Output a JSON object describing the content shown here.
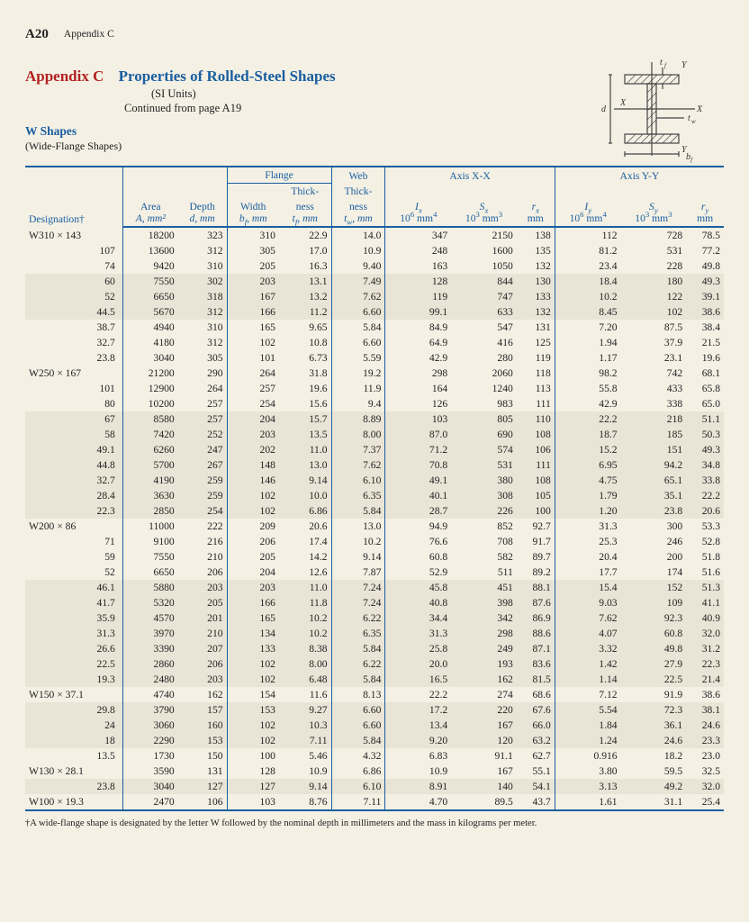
{
  "page": {
    "num": "A20",
    "section": "Appendix C"
  },
  "header": {
    "appendix": "Appendix C",
    "title": "Properties of Rolled-Steel Shapes",
    "units": "(SI Units)",
    "continued": "Continued from page A19",
    "shape": "W Shapes",
    "shape_sub": "(Wide-Flange Shapes)"
  },
  "diagram": {
    "labels": {
      "tf": "t",
      "tf_sub": "f",
      "Y": "Y",
      "d": "d",
      "X": "X",
      "tw": "t",
      "tw_sub": "w",
      "bf": "b",
      "bf_sub": "f"
    },
    "stroke": "#444444"
  },
  "table": {
    "colgroups": {
      "flange": "Flange",
      "web": "Web",
      "axis_xx": "Axis X-X",
      "axis_yy": "Axis Y-Y"
    },
    "columns": [
      {
        "h1": "",
        "h2": "Designation†",
        "u": ""
      },
      {
        "h1": "Area",
        "h2": "A, mm²",
        "u": ""
      },
      {
        "h1": "Depth",
        "h2": "d, mm",
        "u": ""
      },
      {
        "h1": "Width",
        "h2": "bƒ, mm",
        "u": ""
      },
      {
        "h1": "Thick-\nness",
        "h2": "tƒ, mm",
        "u": ""
      },
      {
        "h1": "Thick-\nness",
        "h2": "t_w, mm",
        "u": ""
      },
      {
        "h1": "Iₓ",
        "h2": "10⁶ mm⁴",
        "u": ""
      },
      {
        "h1": "Sₓ",
        "h2": "10³ mm³",
        "u": ""
      },
      {
        "h1": "rₓ",
        "h2": "mm",
        "u": ""
      },
      {
        "h1": "I_y",
        "h2": "10⁶ mm⁴",
        "u": ""
      },
      {
        "h1": "S_y",
        "h2": "10³ mm³",
        "u": ""
      },
      {
        "h1": "r_y",
        "h2": "mm",
        "u": ""
      }
    ],
    "groups": [
      {
        "label": "W310 × 143",
        "rows": [
          [
            "143",
            "18200",
            "323",
            "310",
            "22.9",
            "14.0",
            "347",
            "2150",
            "138",
            "112",
            "728",
            "78.5"
          ],
          [
            "107",
            "13600",
            "312",
            "305",
            "17.0",
            "10.9",
            "248",
            "1600",
            "135",
            "81.2",
            "531",
            "77.2"
          ],
          [
            "74",
            "9420",
            "310",
            "205",
            "16.3",
            "9.40",
            "163",
            "1050",
            "132",
            "23.4",
            "228",
            "49.8"
          ],
          [
            "60",
            "7550",
            "302",
            "203",
            "13.1",
            "7.49",
            "128",
            "844",
            "130",
            "18.4",
            "180",
            "49.3"
          ],
          [
            "52",
            "6650",
            "318",
            "167",
            "13.2",
            "7.62",
            "119",
            "747",
            "133",
            "10.2",
            "122",
            "39.1"
          ],
          [
            "44.5",
            "5670",
            "312",
            "166",
            "11.2",
            "6.60",
            "99.1",
            "633",
            "132",
            "8.45",
            "102",
            "38.6"
          ],
          [
            "38.7",
            "4940",
            "310",
            "165",
            "9.65",
            "5.84",
            "84.9",
            "547",
            "131",
            "7.20",
            "87.5",
            "38.4"
          ],
          [
            "32.7",
            "4180",
            "312",
            "102",
            "10.8",
            "6.60",
            "64.9",
            "416",
            "125",
            "1.94",
            "37.9",
            "21.5"
          ],
          [
            "23.8",
            "3040",
            "305",
            "101",
            "6.73",
            "5.59",
            "42.9",
            "280",
            "119",
            "1.17",
            "23.1",
            "19.6"
          ]
        ]
      },
      {
        "label": "W250 × 167",
        "rows": [
          [
            "167",
            "21200",
            "290",
            "264",
            "31.8",
            "19.2",
            "298",
            "2060",
            "118",
            "98.2",
            "742",
            "68.1"
          ],
          [
            "101",
            "12900",
            "264",
            "257",
            "19.6",
            "11.9",
            "164",
            "1240",
            "113",
            "55.8",
            "433",
            "65.8"
          ],
          [
            "80",
            "10200",
            "257",
            "254",
            "15.6",
            "9.4",
            "126",
            "983",
            "111",
            "42.9",
            "338",
            "65.0"
          ],
          [
            "67",
            "8580",
            "257",
            "204",
            "15.7",
            "8.89",
            "103",
            "805",
            "110",
            "22.2",
            "218",
            "51.1"
          ],
          [
            "58",
            "7420",
            "252",
            "203",
            "13.5",
            "8.00",
            "87.0",
            "690",
            "108",
            "18.7",
            "185",
            "50.3"
          ],
          [
            "49.1",
            "6260",
            "247",
            "202",
            "11.0",
            "7.37",
            "71.2",
            "574",
            "106",
            "15.2",
            "151",
            "49.3"
          ],
          [
            "44.8",
            "5700",
            "267",
            "148",
            "13.0",
            "7.62",
            "70.8",
            "531",
            "111",
            "6.95",
            "94.2",
            "34.8"
          ],
          [
            "32.7",
            "4190",
            "259",
            "146",
            "9.14",
            "6.10",
            "49.1",
            "380",
            "108",
            "4.75",
            "65.1",
            "33.8"
          ],
          [
            "28.4",
            "3630",
            "259",
            "102",
            "10.0",
            "6.35",
            "40.1",
            "308",
            "105",
            "1.79",
            "35.1",
            "22.2"
          ],
          [
            "22.3",
            "2850",
            "254",
            "102",
            "6.86",
            "5.84",
            "28.7",
            "226",
            "100",
            "1.20",
            "23.8",
            "20.6"
          ]
        ]
      },
      {
        "label": "W200 × 86",
        "rows": [
          [
            "86",
            "11000",
            "222",
            "209",
            "20.6",
            "13.0",
            "94.9",
            "852",
            "92.7",
            "31.3",
            "300",
            "53.3"
          ],
          [
            "71",
            "9100",
            "216",
            "206",
            "17.4",
            "10.2",
            "76.6",
            "708",
            "91.7",
            "25.3",
            "246",
            "52.8"
          ],
          [
            "59",
            "7550",
            "210",
            "205",
            "14.2",
            "9.14",
            "60.8",
            "582",
            "89.7",
            "20.4",
            "200",
            "51.8"
          ],
          [
            "52",
            "6650",
            "206",
            "204",
            "12.6",
            "7.87",
            "52.9",
            "511",
            "89.2",
            "17.7",
            "174",
            "51.6"
          ],
          [
            "46.1",
            "5880",
            "203",
            "203",
            "11.0",
            "7.24",
            "45.8",
            "451",
            "88.1",
            "15.4",
            "152",
            "51.3"
          ],
          [
            "41.7",
            "5320",
            "205",
            "166",
            "11.8",
            "7.24",
            "40.8",
            "398",
            "87.6",
            "9.03",
            "109",
            "41.1"
          ],
          [
            "35.9",
            "4570",
            "201",
            "165",
            "10.2",
            "6.22",
            "34.4",
            "342",
            "86.9",
            "7.62",
            "92.3",
            "40.9"
          ],
          [
            "31.3",
            "3970",
            "210",
            "134",
            "10.2",
            "6.35",
            "31.3",
            "298",
            "88.6",
            "4.07",
            "60.8",
            "32.0"
          ],
          [
            "26.6",
            "3390",
            "207",
            "133",
            "8.38",
            "5.84",
            "25.8",
            "249",
            "87.1",
            "3.32",
            "49.8",
            "31.2"
          ],
          [
            "22.5",
            "2860",
            "206",
            "102",
            "8.00",
            "6.22",
            "20.0",
            "193",
            "83.6",
            "1.42",
            "27.9",
            "22.3"
          ],
          [
            "19.3",
            "2480",
            "203",
            "102",
            "6.48",
            "5.84",
            "16.5",
            "162",
            "81.5",
            "1.14",
            "22.5",
            "21.4"
          ]
        ]
      },
      {
        "label": "W150 × 37.1",
        "rows": [
          [
            "37.1",
            "4740",
            "162",
            "154",
            "11.6",
            "8.13",
            "22.2",
            "274",
            "68.6",
            "7.12",
            "91.9",
            "38.6"
          ],
          [
            "29.8",
            "3790",
            "157",
            "153",
            "9.27",
            "6.60",
            "17.2",
            "220",
            "67.6",
            "5.54",
            "72.3",
            "38.1"
          ],
          [
            "24",
            "3060",
            "160",
            "102",
            "10.3",
            "6.60",
            "13.4",
            "167",
            "66.0",
            "1.84",
            "36.1",
            "24.6"
          ],
          [
            "18",
            "2290",
            "153",
            "102",
            "7.11",
            "5.84",
            "9.20",
            "120",
            "63.2",
            "1.24",
            "24.6",
            "23.3"
          ],
          [
            "13.5",
            "1730",
            "150",
            "100",
            "5.46",
            "4.32",
            "6.83",
            "91.1",
            "62.7",
            "0.916",
            "18.2",
            "23.0"
          ]
        ]
      },
      {
        "label": "W130 × 28.1",
        "rows": [
          [
            "28.1",
            "3590",
            "131",
            "128",
            "10.9",
            "6.86",
            "10.9",
            "167",
            "55.1",
            "3.80",
            "59.5",
            "32.5"
          ],
          [
            "23.8",
            "3040",
            "127",
            "127",
            "9.14",
            "6.10",
            "8.91",
            "140",
            "54.1",
            "3.13",
            "49.2",
            "32.0"
          ]
        ]
      },
      {
        "label": "W100 × 19.3",
        "rows": [
          [
            "19.3",
            "2470",
            "106",
            "103",
            "8.76",
            "7.11",
            "4.70",
            "89.5",
            "43.7",
            "1.61",
            "31.1",
            "25.4"
          ]
        ]
      }
    ],
    "alt_rows": [
      3,
      4,
      5,
      12,
      13,
      14,
      15,
      16,
      17,
      18,
      23,
      24,
      25,
      26,
      27,
      28,
      29,
      31,
      32,
      33,
      36
    ],
    "footnote": "†A wide-flange shape is designated by the letter W followed by the nominal depth in millimeters and the mass in kilograms per meter."
  }
}
